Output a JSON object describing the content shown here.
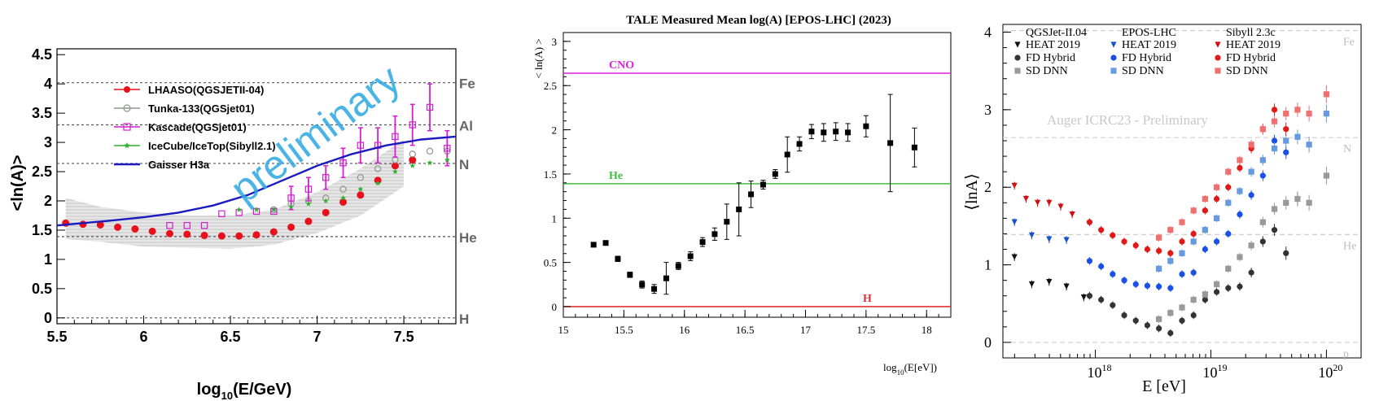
{
  "chart_data": [
    {
      "type": "scatter",
      "xlabel_main": "log",
      "xlabel_sub": "10",
      "xlabel_rest": "(E/GeV)",
      "ylabel": "<ln(A)>",
      "xlim": [
        5.5,
        7.8
      ],
      "ylim": [
        -0.1,
        4.6
      ],
      "xticks": [
        "5.5",
        "6",
        "6.5",
        "7",
        "7.5"
      ],
      "xtick_values": [
        5.5,
        6,
        6.5,
        7,
        7.5
      ],
      "yticks": [
        "0",
        "0.5",
        "1",
        "1.5",
        "2",
        "2.5",
        "3",
        "3.5",
        "4",
        "4.5"
      ],
      "ytick_values": [
        0,
        0.5,
        1,
        1.5,
        2,
        2.5,
        3,
        3.5,
        4,
        4.5
      ],
      "watermark": "preliminary",
      "reference_lines": [
        {
          "label": "Fe",
          "value": 4.02
        },
        {
          "label": "Al",
          "value": 3.3
        },
        {
          "label": "N",
          "value": 2.64
        },
        {
          "label": "He",
          "value": 1.39
        },
        {
          "label": "H",
          "value": 0
        }
      ],
      "legend": [
        {
          "name": "LHAASO(QGSJETII-04)",
          "color": "#e8101a",
          "marker": "circle-filled"
        },
        {
          "name": "Tunka-133(QGSjet01)",
          "color": "#8a9a8a",
          "marker": "circle-open"
        },
        {
          "name": "Kascade(QGSjet01)",
          "color": "#d020d0",
          "marker": "square-open"
        },
        {
          "name": "IceCube/IceTop(Sibyll2.1)",
          "color": "#30b030",
          "marker": "star"
        },
        {
          "name": "Gaisser H3a",
          "color": "#1a1ac0",
          "marker": "line"
        }
      ],
      "series": [
        {
          "name": "LHAASO(QGSJETII-04)",
          "color": "#e8101a",
          "x": [
            5.55,
            5.65,
            5.75,
            5.85,
            5.95,
            6.05,
            6.15,
            6.25,
            6.35,
            6.45,
            6.55,
            6.65,
            6.75,
            6.85,
            6.95,
            7.05,
            7.15,
            7.25,
            7.35,
            7.45,
            7.55
          ],
          "y": [
            1.62,
            1.6,
            1.59,
            1.55,
            1.52,
            1.48,
            1.44,
            1.43,
            1.41,
            1.4,
            1.4,
            1.42,
            1.47,
            1.55,
            1.65,
            1.8,
            1.98,
            2.1,
            2.35,
            2.6,
            2.7
          ]
        },
        {
          "name": "Tunka-133(QGSjet01)",
          "color": "#8a9a8a",
          "x": [
            6.75,
            6.85,
            6.95,
            7.05,
            7.15,
            7.25,
            7.35,
            7.45,
            7.55,
            7.65,
            7.75
          ],
          "y": [
            1.85,
            1.95,
            2.0,
            2.05,
            2.2,
            2.4,
            2.55,
            2.7,
            2.8,
            2.85,
            2.85
          ]
        },
        {
          "name": "Kascade(QGSjet01)",
          "color": "#d020d0",
          "x": [
            6.15,
            6.25,
            6.35,
            6.45,
            6.55,
            6.65,
            6.75,
            6.85,
            6.95,
            7.05,
            7.15,
            7.25,
            7.35,
            7.45,
            7.55,
            7.65,
            7.75
          ],
          "y": [
            1.58,
            1.58,
            1.58,
            1.78,
            1.8,
            1.82,
            1.82,
            2.05,
            2.2,
            2.4,
            2.65,
            2.95,
            2.95,
            3.1,
            3.3,
            3.6,
            2.9
          ],
          "err": [
            0,
            0,
            0,
            0,
            0,
            0,
            0,
            0.2,
            0.2,
            0.2,
            0.25,
            0.3,
            0.3,
            0.35,
            0.35,
            0.4,
            0.3
          ]
        },
        {
          "name": "IceCube/IceTop(Sibyll2.1)",
          "color": "#30b030",
          "x": [
            6.55,
            6.65,
            6.75,
            6.85,
            6.95,
            7.05,
            7.15,
            7.25,
            7.35,
            7.45,
            7.55,
            7.65,
            7.75
          ],
          "y": [
            1.85,
            1.85,
            1.85,
            1.9,
            1.95,
            2.0,
            2.05,
            2.2,
            2.3,
            2.5,
            2.6,
            2.65,
            2.7
          ]
        },
        {
          "name": "Gaisser H3a",
          "color": "#1a1ac0",
          "type": "line",
          "x": [
            5.5,
            5.8,
            6.0,
            6.2,
            6.4,
            6.6,
            6.8,
            7.0,
            7.2,
            7.4,
            7.6,
            7.8
          ],
          "y": [
            1.58,
            1.66,
            1.72,
            1.8,
            1.92,
            2.1,
            2.35,
            2.6,
            2.8,
            2.95,
            3.05,
            3.1
          ]
        }
      ],
      "band": {
        "x": [
          5.55,
          5.75,
          6.0,
          6.25,
          6.5,
          6.75,
          7.0,
          7.25,
          7.5
        ],
        "low": [
          1.35,
          1.3,
          1.22,
          1.2,
          1.18,
          1.25,
          1.45,
          1.75,
          2.25
        ],
        "high": [
          2.05,
          1.9,
          1.8,
          1.75,
          1.75,
          1.85,
          2.15,
          2.55,
          3.05
        ]
      }
    },
    {
      "type": "scatter",
      "title": "TALE Measured Mean log(A) [EPOS-LHC] (2023)",
      "ylabel": "< ln(A) >",
      "xlabel_main": "log",
      "xlabel_sub": "10",
      "xlabel_rest": "(E[eV])",
      "xlim": [
        15,
        18.2
      ],
      "ylim": [
        -0.12,
        3.1
      ],
      "xticks": [
        "15",
        "15.5",
        "16",
        "16.5",
        "17",
        "17.5",
        "18"
      ],
      "xtick_values": [
        15,
        15.5,
        16,
        16.5,
        17,
        17.5,
        18
      ],
      "yticks": [
        "0",
        "0.5",
        "1",
        "1.5",
        "2",
        "2.5",
        "3"
      ],
      "ytick_values": [
        0,
        0.5,
        1,
        1.5,
        2,
        2.5,
        3
      ],
      "reference_lines": [
        {
          "label": "CNO",
          "value": 2.64,
          "color": "#e020e0"
        },
        {
          "label": "He",
          "value": 1.39,
          "color": "#40c040"
        },
        {
          "label": "H",
          "value": 0,
          "color": "#e03030"
        }
      ],
      "series": [
        {
          "name": "TALE",
          "color": "#000000",
          "x": [
            15.25,
            15.35,
            15.45,
            15.55,
            15.65,
            15.75,
            15.85,
            15.95,
            16.05,
            16.15,
            16.25,
            16.35,
            16.45,
            16.55,
            16.65,
            16.75,
            16.85,
            16.95,
            17.05,
            17.15,
            17.25,
            17.35,
            17.5,
            17.7,
            17.9
          ],
          "y": [
            0.7,
            0.72,
            0.54,
            0.36,
            0.25,
            0.2,
            0.32,
            0.46,
            0.57,
            0.73,
            0.82,
            0.96,
            1.1,
            1.27,
            1.38,
            1.5,
            1.72,
            1.84,
            1.98,
            1.97,
            1.98,
            1.97,
            2.04,
            1.85,
            1.8
          ],
          "err": [
            0.02,
            0.02,
            0.03,
            0.03,
            0.04,
            0.05,
            0.18,
            0.04,
            0.05,
            0.05,
            0.07,
            0.2,
            0.3,
            0.15,
            0.05,
            0.05,
            0.2,
            0.08,
            0.08,
            0.1,
            0.1,
            0.1,
            0.12,
            0.55,
            0.22
          ]
        }
      ]
    },
    {
      "type": "scatter",
      "xlabel": "E [eV]",
      "ylabel": "⟨lnA⟩",
      "watermark": "Auger ICRC23 - Preliminary",
      "xscale": "log",
      "xlim": [
        17.2,
        20.3
      ],
      "ylim": [
        -0.2,
        4.1
      ],
      "xticks_main": [
        "10",
        "10",
        "10"
      ],
      "xticks_exp": [
        "18",
        "19",
        "20"
      ],
      "xtick_values": [
        18,
        19,
        20
      ],
      "yticks": [
        "0",
        "1",
        "2",
        "3",
        "4"
      ],
      "ytick_values": [
        0,
        1,
        2,
        3,
        4
      ],
      "reference_lines": [
        {
          "label": "Fe",
          "value": 4.02
        },
        {
          "label": "N",
          "value": 2.64
        },
        {
          "label": "He",
          "value": 1.39
        },
        {
          "label": "p",
          "value": 0
        }
      ],
      "legend_headers": [
        "QGSJet-II.04",
        "EPOS-LHC",
        "Sibyll 2.3c"
      ],
      "legend_entries": [
        "HEAT 2019",
        "FD Hybrid",
        "SD DNN"
      ],
      "series": [
        {
          "name": "QGSJet-II.04 HEAT 2019",
          "color": "#111111",
          "marker": "tri-down",
          "x": [
            17.3,
            17.45,
            17.6,
            17.75,
            17.9
          ],
          "y": [
            1.1,
            0.75,
            0.78,
            0.72,
            0.58
          ]
        },
        {
          "name": "QGSJet-II.04 FD Hybrid",
          "color": "#333333",
          "marker": "circle",
          "x": [
            17.95,
            18.05,
            18.15,
            18.25,
            18.35,
            18.45,
            18.55,
            18.65,
            18.75,
            18.85,
            18.95,
            19.05,
            19.15,
            19.25,
            19.35,
            19.45,
            19.55,
            19.65,
            19.75
          ],
          "y": [
            0.6,
            0.55,
            0.48,
            0.35,
            0.28,
            0.22,
            0.18,
            0.12,
            0.28,
            0.35,
            0.55,
            0.65,
            0.7,
            0.72,
            0.9,
            1.3,
            1.45,
            1.15,
            1.85
          ]
        },
        {
          "name": "QGSJet-II.04 SD DNN",
          "color": "#999999",
          "marker": "square",
          "x": [
            18.55,
            18.65,
            18.75,
            18.85,
            18.95,
            19.05,
            19.15,
            19.25,
            19.35,
            19.45,
            19.55,
            19.65,
            19.75,
            19.85,
            20.0
          ],
          "y": [
            0.3,
            0.38,
            0.45,
            0.55,
            0.62,
            0.75,
            0.95,
            1.1,
            1.25,
            1.55,
            1.72,
            1.8,
            1.85,
            1.8,
            2.15
          ]
        },
        {
          "name": "EPOS-LHC HEAT 2019",
          "color": "#1a4fd0",
          "marker": "tri-down",
          "x": [
            17.3,
            17.45,
            17.6,
            17.75
          ],
          "y": [
            1.55,
            1.38,
            1.33,
            1.32
          ]
        },
        {
          "name": "EPOS-LHC FD Hybrid",
          "color": "#1a4fe8",
          "marker": "circle",
          "x": [
            17.95,
            18.05,
            18.15,
            18.25,
            18.35,
            18.45,
            18.55,
            18.65,
            18.75,
            18.85,
            18.95,
            19.05,
            19.15,
            19.25,
            19.35,
            19.45,
            19.55,
            19.65
          ],
          "y": [
            1.05,
            0.98,
            0.88,
            0.8,
            0.75,
            0.73,
            0.72,
            0.7,
            0.88,
            0.9,
            1.2,
            1.3,
            1.4,
            1.65,
            1.9,
            2.15,
            2.6,
            2.45
          ]
        },
        {
          "name": "EPOS-LHC SD DNN",
          "color": "#6699dd",
          "marker": "square",
          "x": [
            18.55,
            18.65,
            18.75,
            18.85,
            18.95,
            19.05,
            19.15,
            19.25,
            19.35,
            19.45,
            19.55,
            19.65,
            19.75,
            19.85,
            20.0
          ],
          "y": [
            0.95,
            1.05,
            1.15,
            1.3,
            1.45,
            1.6,
            1.8,
            1.95,
            2.2,
            2.35,
            2.5,
            2.6,
            2.65,
            2.55,
            2.95
          ]
        },
        {
          "name": "Sibyll 2.3c HEAT 2019",
          "color": "#d01010",
          "marker": "tri-down",
          "x": [
            17.3,
            17.4,
            17.5,
            17.6,
            17.7,
            17.8
          ],
          "y": [
            2.02,
            1.85,
            1.8,
            1.8,
            1.75,
            1.65
          ]
        },
        {
          "name": "Sibyll 2.3c FD Hybrid",
          "color": "#e01818",
          "marker": "circle",
          "x": [
            17.95,
            18.05,
            18.15,
            18.25,
            18.35,
            18.45,
            18.55,
            18.65,
            18.75,
            18.85,
            18.95,
            19.05,
            19.15,
            19.25,
            19.35,
            19.45,
            19.55,
            19.65
          ],
          "y": [
            1.55,
            1.45,
            1.38,
            1.3,
            1.25,
            1.2,
            1.18,
            1.15,
            1.3,
            1.4,
            1.7,
            1.85,
            2.0,
            2.25,
            2.5,
            2.75,
            3.0,
            2.75
          ]
        },
        {
          "name": "Sibyll 2.3c SD DNN",
          "color": "#f07070",
          "marker": "square",
          "x": [
            18.55,
            18.65,
            18.75,
            18.85,
            18.95,
            19.05,
            19.15,
            19.25,
            19.35,
            19.45,
            19.55,
            19.65,
            19.75,
            19.85,
            20.0
          ],
          "y": [
            1.35,
            1.45,
            1.55,
            1.7,
            1.85,
            2.0,
            2.2,
            2.35,
            2.55,
            2.75,
            2.85,
            2.95,
            3.0,
            2.95,
            3.2
          ]
        }
      ]
    }
  ]
}
